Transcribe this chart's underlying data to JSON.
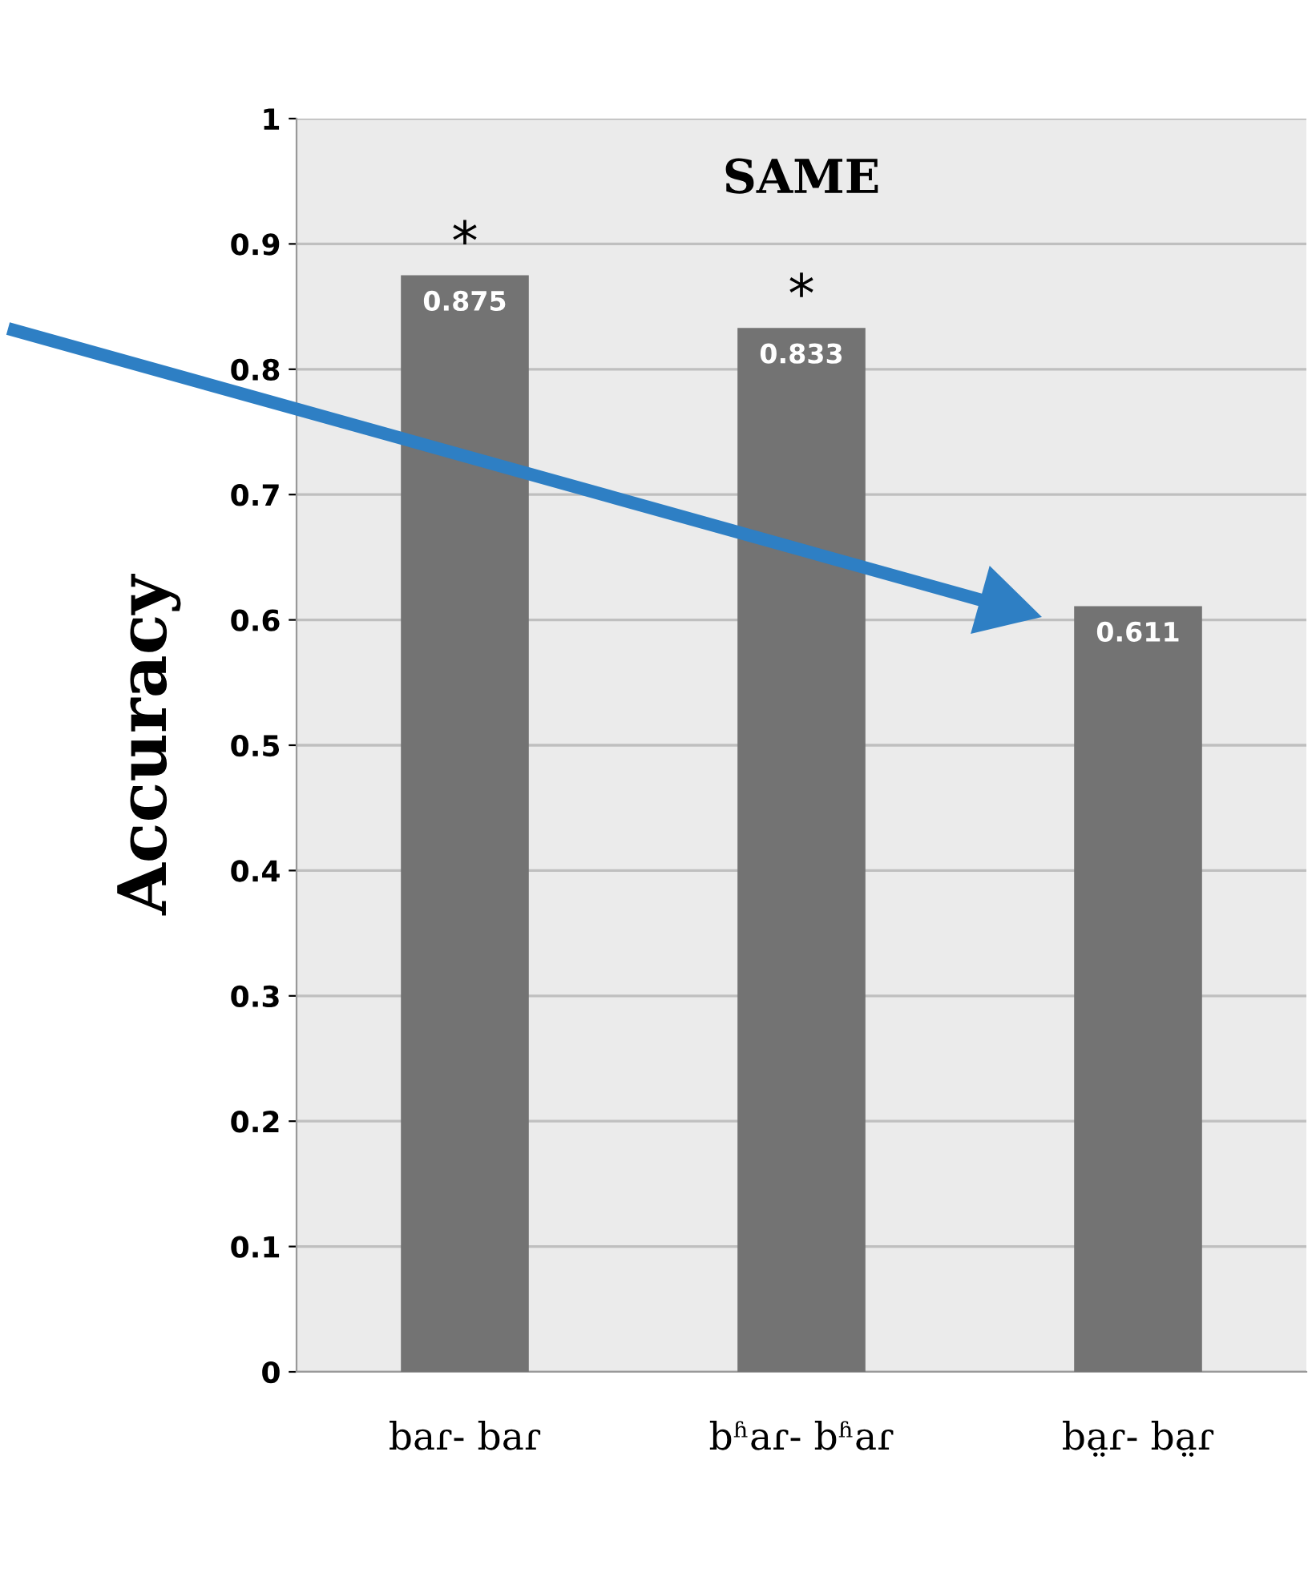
{
  "chart_data": {
    "type": "bar",
    "title": "SAME",
    "ylabel": "Accuracy",
    "categories": [
      "baɾ- baɾ",
      "bʱaɾ- bʱaɾ",
      "ba̤ɾ- ba̤ɾ"
    ],
    "values": [
      0.875,
      0.833,
      0.611
    ],
    "color": "#737373",
    "ylim": [
      0,
      1
    ],
    "yticks": [
      0,
      0.1,
      0.2,
      0.3,
      0.4,
      0.5,
      0.6,
      0.7,
      0.8,
      0.9,
      1
    ],
    "grid": "y",
    "data_labels": true,
    "annotations": [
      {
        "text": "*",
        "x": "baɾ- baɾ",
        "y": 0.875
      },
      {
        "text": "*",
        "x": "bʱaɾ- bʱaɾ",
        "y": 0.833
      }
    ]
  }
}
